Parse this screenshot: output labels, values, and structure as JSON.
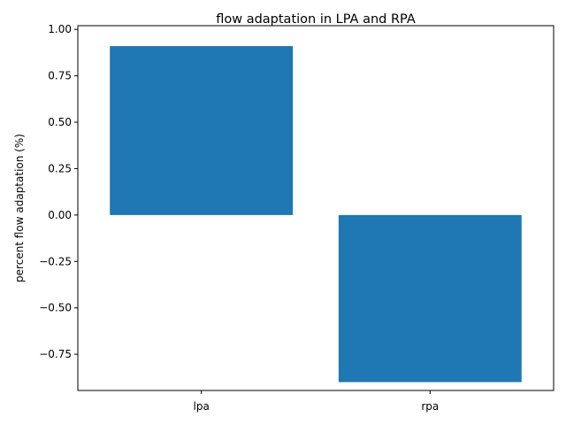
{
  "chart_data": {
    "type": "bar",
    "title": "flow adaptation in LPA and RPA",
    "xlabel": "",
    "ylabel": "percent flow adaptation (%)",
    "categories": [
      "lpa",
      "rpa"
    ],
    "values": [
      0.91,
      -0.9
    ],
    "ylim": [
      -0.945,
      1.02
    ],
    "yticks": [
      1.0,
      0.75,
      0.5,
      0.25,
      0.0,
      -0.25,
      -0.5,
      -0.75
    ],
    "ytick_labels": [
      "1.00",
      "0.75",
      "0.50",
      "0.25",
      "0.00",
      "−0.25",
      "−0.50",
      "−0.75"
    ],
    "bar_color": "#1f77b4",
    "grid": false,
    "legend": "none"
  }
}
